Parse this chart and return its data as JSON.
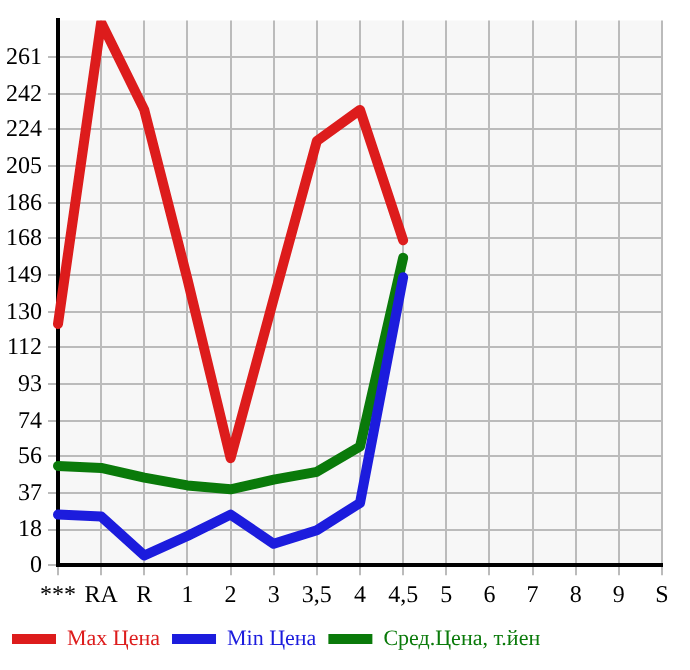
{
  "chart_data": {
    "type": "line",
    "categories": [
      "***",
      "RA",
      "R",
      "1",
      "2",
      "3",
      "3,5",
      "4",
      "4,5",
      "5",
      "6",
      "7",
      "8",
      "9",
      "S"
    ],
    "series": [
      {
        "name": "Max Цена",
        "color": "#dd1c1c",
        "values": [
          124,
          279,
          234,
          147,
          55,
          137,
          218,
          234,
          167,
          null,
          null,
          null,
          null,
          null,
          null
        ]
      },
      {
        "name": "Min Цена",
        "color": "#1c1cdd",
        "values": [
          26,
          25,
          5,
          15,
          26,
          11,
          18,
          32,
          148,
          null,
          null,
          null,
          null,
          null,
          null
        ]
      },
      {
        "name": "Сред.Цена, т.йен",
        "color": "#0a7a0a",
        "values": [
          51,
          50,
          45,
          41,
          39,
          44,
          48,
          61,
          158,
          null,
          null,
          null,
          null,
          null,
          null
        ]
      }
    ],
    "ylim": [
      0,
      280
    ],
    "yticks": [
      0,
      18,
      37,
      56,
      74,
      93,
      112,
      130,
      149,
      168,
      186,
      205,
      224,
      242,
      261
    ],
    "grid": true,
    "legend": "bottom",
    "marker": "none",
    "line_style": "solid"
  }
}
